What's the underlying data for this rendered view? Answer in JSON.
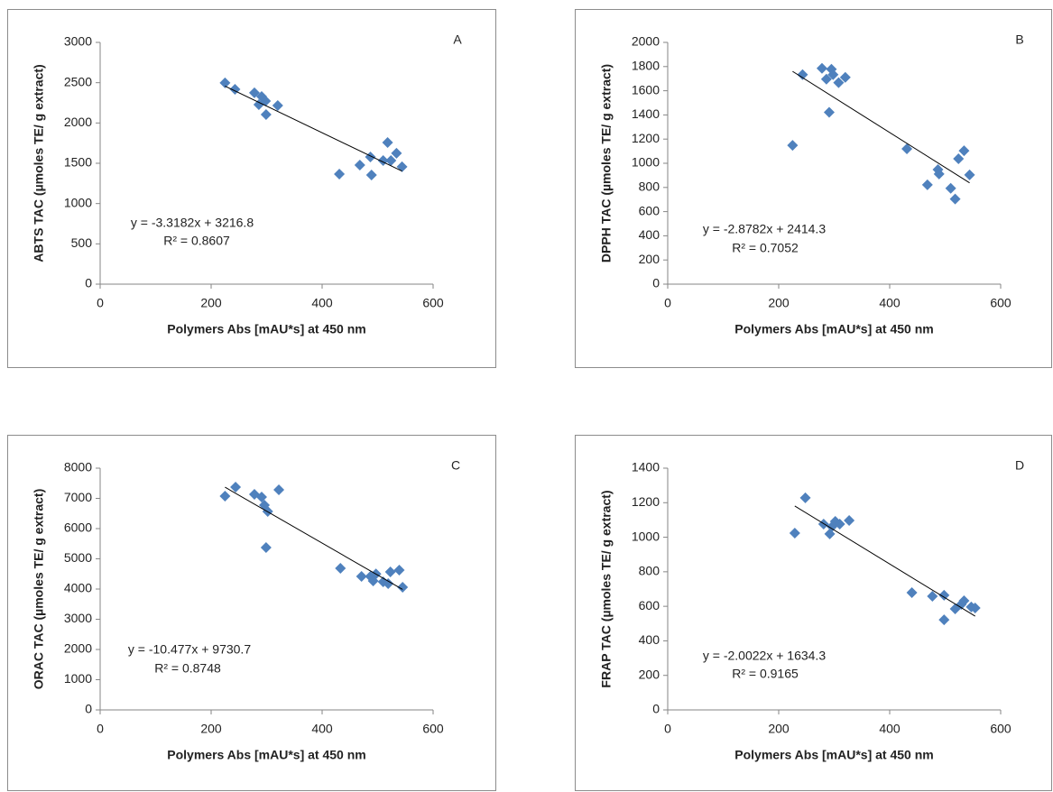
{
  "chart_data": [
    {
      "type": "scatter",
      "label": "A",
      "xlabel": "Polymers Abs [mAU*s] at 450 nm",
      "ylabel": "ABTS TAC (µmoles TE/ g extract)",
      "annotations": [
        "y = -3.3182x + 3216.8",
        "R² = 0.8607"
      ],
      "color": "#4f81bd",
      "x": [
        225,
        243,
        278,
        286,
        291,
        298,
        299,
        320,
        431,
        468,
        487,
        489,
        510,
        518,
        524,
        534,
        544
      ],
      "values": [
        2497,
        2418,
        2374,
        2228,
        2329,
        2273,
        2105,
        2217,
        1366,
        1478,
        1579,
        1355,
        1534,
        1758,
        1534,
        1624,
        1456
      ],
      "xlim": [
        0,
        600
      ],
      "xticks": [
        0,
        200,
        400,
        600
      ],
      "ylim": [
        0,
        3000
      ],
      "yticks": [
        0,
        500,
        1000,
        1500,
        2000,
        2500,
        3000
      ]
    },
    {
      "type": "scatter",
      "label": "B",
      "xlabel": "Polymers Abs [mAU*s] at 450 nm",
      "ylabel": "DPPH TAC (µmoles TE/ g extract)",
      "annotations": [
        "y = -2.8782x + 2414.3",
        "R² = 0.7052"
      ],
      "color": "#4f81bd",
      "x": [
        225,
        243,
        278,
        286,
        291,
        295,
        298,
        308,
        320,
        431,
        468,
        487,
        489,
        510,
        518,
        524,
        534,
        544
      ],
      "values": [
        1148,
        1733,
        1785,
        1696,
        1422,
        1778,
        1733,
        1667,
        1711,
        1119,
        822,
        948,
        911,
        793,
        704,
        1037,
        1104,
        904
      ],
      "xlim": [
        0,
        600
      ],
      "xticks": [
        0,
        200,
        400,
        600
      ],
      "ylim": [
        0,
        2000
      ],
      "yticks": [
        0,
        200,
        400,
        600,
        800,
        1000,
        1200,
        1400,
        1600,
        1800,
        2000
      ]
    },
    {
      "type": "scatter",
      "label": "C",
      "xlabel": "Polymers Abs [mAU*s] at 450 nm",
      "ylabel": "ORAC TAC (µmoles TE/ g extract)",
      "annotations": [
        "y = -10.477x + 9730.7",
        "R² = 0.8748"
      ],
      "color": "#4f81bd",
      "x": [
        225,
        244,
        278,
        291,
        296,
        302,
        299,
        322,
        433,
        471,
        487,
        492,
        497,
        510,
        519,
        523,
        539,
        545
      ],
      "values": [
        7075,
        7373,
        7134,
        7045,
        6776,
        6567,
        5373,
        7284,
        4687,
        4418,
        4418,
        4269,
        4500,
        4239,
        4179,
        4567,
        4627,
        4060
      ],
      "xlim": [
        0,
        600
      ],
      "xticks": [
        0,
        200,
        400,
        600
      ],
      "ylim": [
        0,
        8000
      ],
      "yticks": [
        0,
        1000,
        2000,
        3000,
        4000,
        5000,
        6000,
        7000,
        8000
      ]
    },
    {
      "type": "scatter",
      "label": "D",
      "xlabel": "Polymers Abs [mAU*s] at 450 nm",
      "ylabel": "FRAP TAC (µmoles TE/ g extract)",
      "annotations": [
        "y = -2.0022x + 1634.3",
        "R² = 0.9165"
      ],
      "color": "#4f81bd",
      "x": [
        229,
        248,
        281,
        296,
        292,
        302,
        310,
        327,
        440,
        477,
        498,
        498,
        518,
        529,
        534,
        547,
        554
      ],
      "values": [
        1024,
        1228,
        1076,
        1061,
        1019,
        1092,
        1076,
        1097,
        679,
        658,
        664,
        522,
        585,
        611,
        632,
        596,
        590
      ],
      "xlim": [
        0,
        600
      ],
      "xticks": [
        0,
        200,
        400,
        600
      ],
      "ylim": [
        0,
        1400
      ],
      "yticks": [
        0,
        200,
        400,
        600,
        800,
        1000,
        1200,
        1400
      ]
    }
  ]
}
